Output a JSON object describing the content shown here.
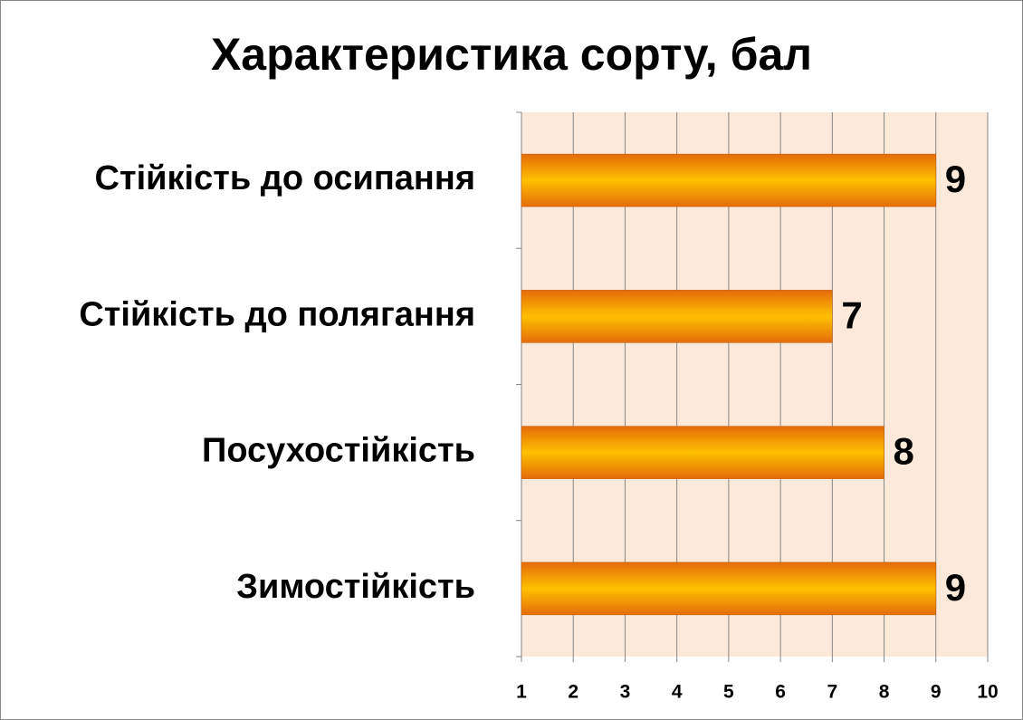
{
  "chart_data": {
    "type": "bar",
    "orientation": "horizontal",
    "title": "Характеристика сорту, бал",
    "categories": [
      "Стійкість до осипання",
      "Стійкість до полягання",
      "Посухостійкість",
      "Зимостійкість"
    ],
    "values": [
      9,
      7,
      8,
      9
    ],
    "color": "#ffc000",
    "xlim": [
      1,
      10
    ],
    "xticks": [
      1,
      2,
      3,
      4,
      5,
      6,
      7,
      8,
      9,
      10
    ],
    "grid": true
  }
}
